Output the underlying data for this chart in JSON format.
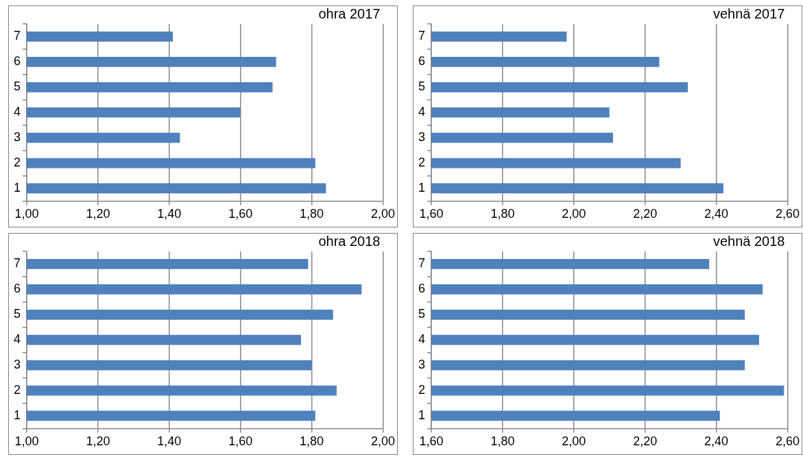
{
  "chart_data": [
    {
      "type": "bar",
      "orientation": "horizontal",
      "title": "ohra 2017",
      "categories": [
        "7",
        "6",
        "5",
        "4",
        "3",
        "2",
        "1"
      ],
      "values": [
        1.41,
        1.7,
        1.69,
        1.6,
        1.43,
        1.81,
        1.84
      ],
      "color": "#4f81bd",
      "xlim": [
        1,
        2
      ],
      "xticks": [
        {
          "value": 1,
          "label": "1,00"
        },
        {
          "value": 1.2,
          "label": "1,20"
        },
        {
          "value": 1.4,
          "label": "1,40"
        },
        {
          "value": 1.6,
          "label": "1,60"
        },
        {
          "value": 1.8,
          "label": "1,80"
        },
        {
          "value": 2,
          "label": "2,00"
        }
      ],
      "grid": "x"
    },
    {
      "type": "bar",
      "orientation": "horizontal",
      "title": "vehnä 2017",
      "categories": [
        "7",
        "6",
        "5",
        "4",
        "3",
        "2",
        "1"
      ],
      "values": [
        1.98,
        2.24,
        2.32,
        2.1,
        2.11,
        2.3,
        2.42
      ],
      "color": "#4f81bd",
      "xlim": [
        1.6,
        2.6
      ],
      "xticks": [
        {
          "value": 1.6,
          "label": "1,60"
        },
        {
          "value": 1.8,
          "label": "1,80"
        },
        {
          "value": 2,
          "label": "2,00"
        },
        {
          "value": 2.2,
          "label": "2,20"
        },
        {
          "value": 2.4,
          "label": "2,40"
        },
        {
          "value": 2.6,
          "label": "2,60"
        }
      ],
      "grid": "x"
    },
    {
      "type": "bar",
      "orientation": "horizontal",
      "title": "ohra 2018",
      "categories": [
        "7",
        "6",
        "5",
        "4",
        "3",
        "2",
        "1"
      ],
      "values": [
        1.79,
        1.94,
        1.86,
        1.77,
        1.8,
        1.87,
        1.81
      ],
      "color": "#4f81bd",
      "xlim": [
        1,
        2
      ],
      "xticks": [
        {
          "value": 1,
          "label": "1,00"
        },
        {
          "value": 1.2,
          "label": "1,20"
        },
        {
          "value": 1.4,
          "label": "1,40"
        },
        {
          "value": 1.6,
          "label": "1,60"
        },
        {
          "value": 1.8,
          "label": "1,80"
        },
        {
          "value": 2,
          "label": "2,00"
        }
      ],
      "grid": "x"
    },
    {
      "type": "bar",
      "orientation": "horizontal",
      "title": "vehnä 2018",
      "categories": [
        "7",
        "6",
        "5",
        "4",
        "3",
        "2",
        "1"
      ],
      "values": [
        2.38,
        2.53,
        2.48,
        2.52,
        2.48,
        2.59,
        2.41
      ],
      "color": "#4f81bd",
      "xlim": [
        1.6,
        2.6
      ],
      "xticks": [
        {
          "value": 1.6,
          "label": "1,60"
        },
        {
          "value": 1.8,
          "label": "1,80"
        },
        {
          "value": 2,
          "label": "2,00"
        },
        {
          "value": 2.2,
          "label": "2,20"
        },
        {
          "value": 2.4,
          "label": "2,40"
        },
        {
          "value": 2.6,
          "label": "2,60"
        }
      ],
      "grid": "x"
    }
  ]
}
